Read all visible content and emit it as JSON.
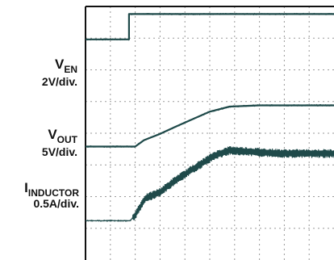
{
  "chart_data": {
    "type": "line",
    "grid": true,
    "x_divisions": 10,
    "y_divisions": 8,
    "trace_color": "#1f4a4a",
    "grid_color": "#9a9a9a",
    "series": [
      {
        "name_main": "V",
        "name_sub": "EN",
        "scale": "2V/div.",
        "points": [
          [
            0,
            6.96
          ],
          [
            1.75,
            6.96
          ],
          [
            1.75,
            7.76
          ],
          [
            10,
            7.76
          ]
        ]
      },
      {
        "name_main": "V",
        "name_sub": "OUT",
        "scale": "5V/div.",
        "points": [
          [
            0,
            3.58
          ],
          [
            2.0,
            3.58
          ],
          [
            2.35,
            3.78
          ],
          [
            3.0,
            3.98
          ],
          [
            3.6,
            4.2
          ],
          [
            4.3,
            4.44
          ],
          [
            5.0,
            4.68
          ],
          [
            5.8,
            4.84
          ],
          [
            7.0,
            4.88
          ],
          [
            10,
            4.88
          ]
        ]
      },
      {
        "name_main": "I",
        "name_sub": "INDUCTOR",
        "scale": "0.5A/div.",
        "ripple": 0.14,
        "points": [
          [
            0,
            1.24
          ],
          [
            1.8,
            1.24
          ],
          [
            2.0,
            1.42
          ],
          [
            2.4,
            1.94
          ],
          [
            3.0,
            2.14
          ],
          [
            3.6,
            2.5
          ],
          [
            4.3,
            2.86
          ],
          [
            5.2,
            3.3
          ],
          [
            5.8,
            3.46
          ],
          [
            7.0,
            3.4
          ],
          [
            8.0,
            3.36
          ],
          [
            10,
            3.36
          ]
        ]
      }
    ]
  }
}
